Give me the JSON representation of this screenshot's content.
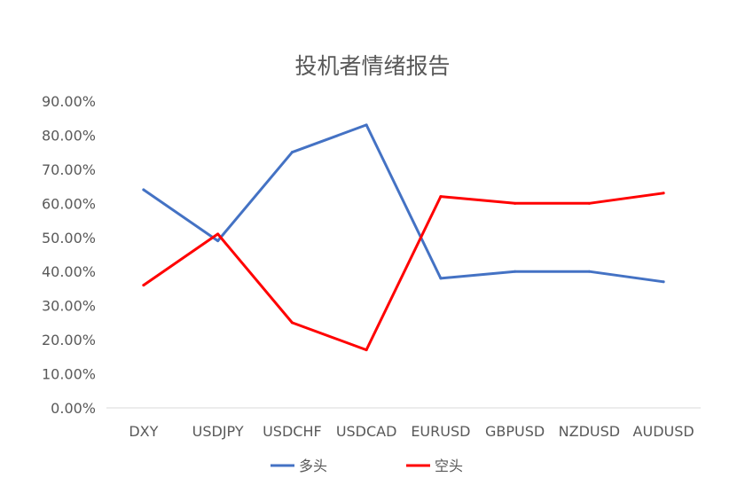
{
  "chart_data": {
    "type": "line",
    "title": "投机者情绪报告",
    "xlabel": "",
    "ylabel": "",
    "categories": [
      "DXY",
      "USDJPY",
      "USDCHF",
      "USDCAD",
      "EURUSD",
      "GBPUSD",
      "NZDUSD",
      "AUDUSD"
    ],
    "ylim": [
      0,
      0.9
    ],
    "ytick_labels": [
      "0.00%",
      "10.00%",
      "20.00%",
      "30.00%",
      "40.00%",
      "50.00%",
      "60.00%",
      "70.00%",
      "80.00%",
      "90.00%"
    ],
    "grid": false,
    "legend_position": "bottom",
    "series": [
      {
        "name": "多头",
        "color": "#4472C4",
        "values": [
          0.64,
          0.49,
          0.75,
          0.83,
          0.38,
          0.4,
          0.4,
          0.37
        ]
      },
      {
        "name": "空头",
        "color": "#FF0000",
        "values": [
          0.36,
          0.51,
          0.25,
          0.17,
          0.62,
          0.6,
          0.6,
          0.63
        ]
      }
    ]
  }
}
